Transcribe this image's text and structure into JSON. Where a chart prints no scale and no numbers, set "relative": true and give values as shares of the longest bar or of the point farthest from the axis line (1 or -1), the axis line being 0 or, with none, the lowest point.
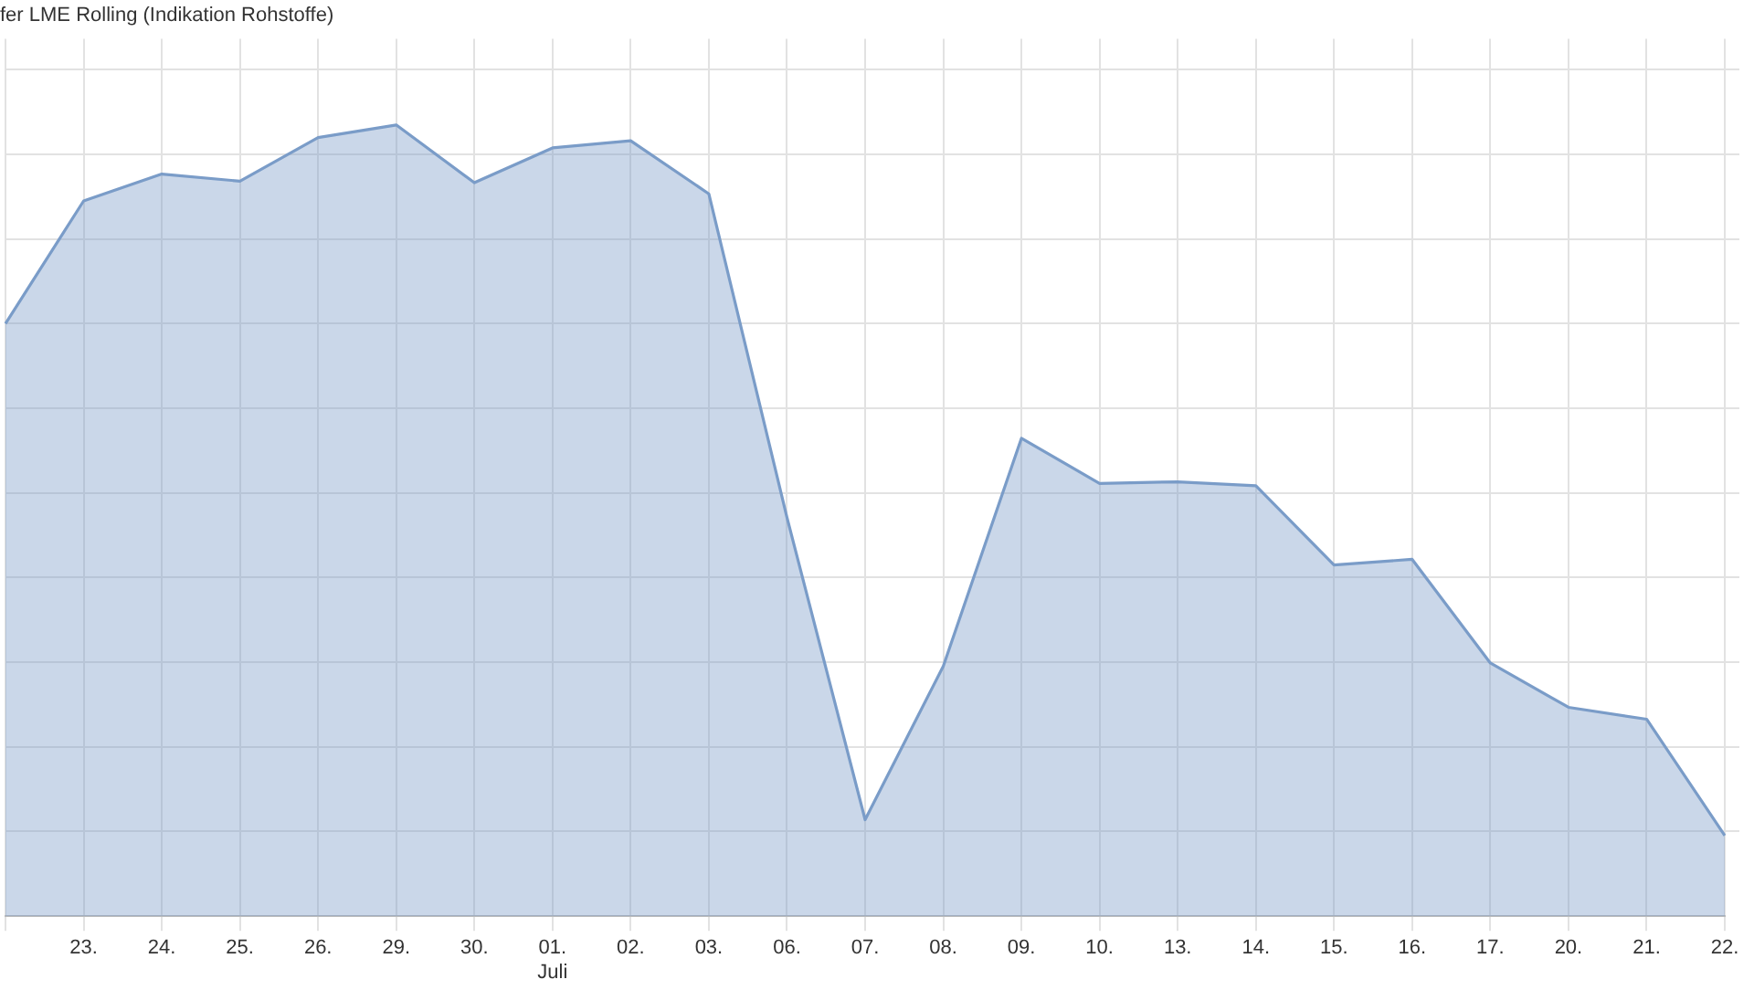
{
  "chart_data": {
    "type": "area",
    "title": "fer LME Rolling (Indikation Rohstoffe)",
    "categories": [
      null,
      "23.",
      "24.",
      "25.",
      "26.",
      "29.",
      "30.",
      "01.\nJuli",
      "02.",
      "03.",
      "06.",
      "07.",
      "08.",
      "09.",
      "10.",
      "13.",
      "14.",
      "15.",
      "16.",
      "17.",
      "20.",
      "21.",
      "22."
    ],
    "series": [
      {
        "color": "#7a9cc8",
        "values": [
          0.749,
          0.904,
          0.938,
          0.929,
          0.984,
          1,
          0.927,
          0.971,
          0.98,
          0.913,
          0.504,
          0.122,
          0.316,
          0.604,
          0.547,
          0.549,
          0.544,
          0.444,
          0.451,
          0.32,
          0.264,
          0.249,
          0.102
        ]
      }
    ],
    "relative": true,
    "grid": true,
    "legend": false,
    "marker": "none",
    "line_style": "solid"
  }
}
